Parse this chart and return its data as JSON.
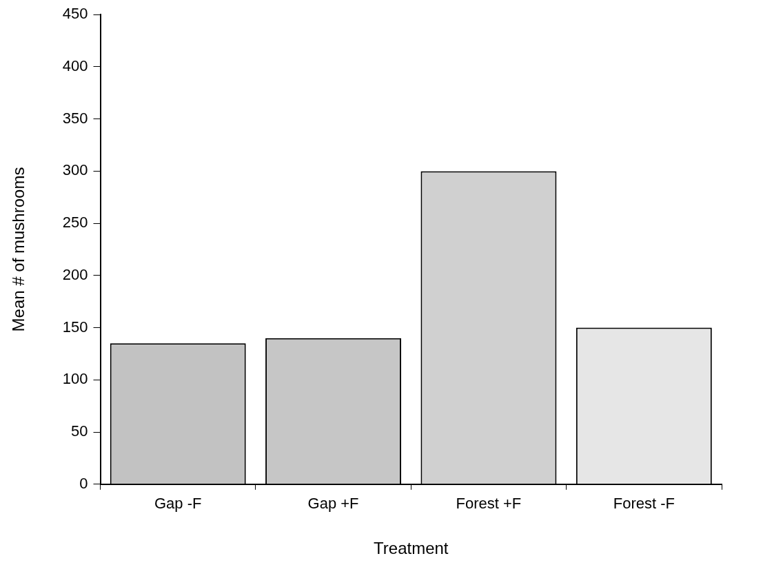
{
  "chart_data": {
    "type": "bar",
    "xlabel": "Treatment",
    "ylabel": "Mean # of mushrooms",
    "categories": [
      "Gap -F",
      "Gap +F",
      "Forest +F",
      "Forest -F"
    ],
    "values": [
      135,
      140,
      300,
      150
    ],
    "colors": [
      "#c2c2c2",
      "#c6c6c6",
      "#d0d0d0",
      "#e6e6e6"
    ],
    "ylim": [
      0,
      450
    ],
    "yticks": [
      0,
      50,
      100,
      150,
      200,
      250,
      300,
      350,
      400,
      450
    ],
    "grid": false,
    "legend": false
  }
}
